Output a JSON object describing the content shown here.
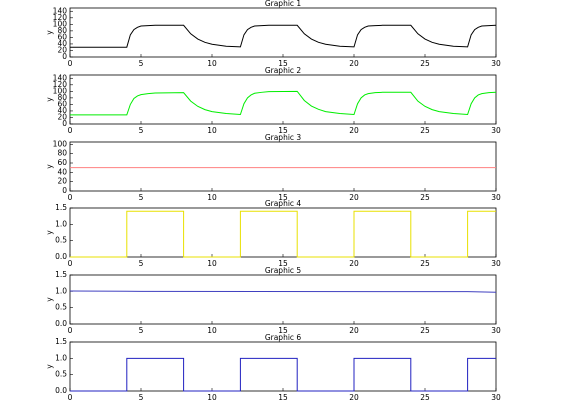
{
  "chart_data": [
    {
      "type": "line",
      "title": "Graphic 1",
      "ylabel": "y",
      "color": "#000000",
      "x": [
        0,
        4,
        4.25,
        4.5,
        4.75,
        5,
        5.5,
        6,
        8,
        8.5,
        9,
        9.5,
        10,
        11,
        12,
        12.25,
        12.5,
        12.75,
        13,
        13.5,
        14,
        16,
        16.5,
        17,
        17.5,
        18,
        19,
        20,
        20.25,
        20.5,
        20.75,
        21,
        21.5,
        22,
        24,
        24.5,
        25,
        25.5,
        26,
        27,
        28,
        28.25,
        28.5,
        28.75,
        29,
        29.5,
        30
      ],
      "values": [
        30,
        30,
        68,
        84,
        91,
        95,
        96,
        97,
        97,
        71,
        55,
        45,
        39,
        33,
        31,
        68,
        84,
        91,
        95,
        96,
        97,
        97,
        71,
        55,
        45,
        39,
        33,
        31,
        68,
        84,
        91,
        95,
        96,
        97,
        97,
        71,
        55,
        45,
        39,
        33,
        31,
        68,
        84,
        91,
        95,
        96,
        97
      ],
      "xlim": [
        0,
        30
      ],
      "xticks": [
        0,
        5,
        10,
        15,
        20,
        25,
        30
      ],
      "ylim": [
        0,
        150
      ],
      "yticks": [
        0,
        20,
        40,
        60,
        80,
        100,
        120,
        140
      ]
    },
    {
      "type": "line",
      "title": "Graphic 2",
      "ylabel": "y",
      "color": "#00ee00",
      "x": [
        0,
        4,
        4.25,
        4.5,
        4.75,
        5,
        5.5,
        6,
        8,
        8.5,
        9,
        9.5,
        10,
        11,
        12,
        12.25,
        12.5,
        12.75,
        13,
        13.5,
        14,
        16,
        16.5,
        17,
        17.5,
        18,
        19,
        20,
        20.25,
        20.5,
        20.75,
        21,
        21.5,
        22,
        24,
        24.5,
        25,
        25.5,
        26,
        27,
        28,
        28.25,
        28.5,
        28.75,
        29,
        29.5,
        30
      ],
      "values": [
        28,
        28,
        60,
        78,
        86,
        90,
        93,
        95,
        96,
        70,
        54,
        44,
        38,
        32,
        29,
        62,
        80,
        89,
        94,
        97,
        99,
        100,
        72,
        55,
        45,
        38,
        32,
        29,
        62,
        80,
        89,
        93,
        96,
        97,
        97,
        70,
        54,
        44,
        38,
        32,
        29,
        62,
        80,
        89,
        93,
        96,
        97
      ],
      "xlim": [
        0,
        30
      ],
      "xticks": [
        0,
        5,
        10,
        15,
        20,
        25,
        30
      ],
      "ylim": [
        0,
        150
      ],
      "yticks": [
        0,
        20,
        40,
        60,
        80,
        100,
        120,
        140
      ]
    },
    {
      "type": "line",
      "title": "Graphic 3",
      "ylabel": "y",
      "color": "#ff8080",
      "x": [
        0,
        30
      ],
      "values": [
        50,
        50
      ],
      "xlim": [
        0,
        30
      ],
      "xticks": [
        0,
        5,
        10,
        15,
        20,
        25,
        30
      ],
      "ylim": [
        0,
        105
      ],
      "yticks": [
        0,
        20,
        40,
        60,
        80,
        100
      ]
    },
    {
      "type": "line",
      "title": "Graphic 4",
      "ylabel": "y",
      "color": "#e8e000",
      "x": [
        0,
        4,
        4,
        8,
        8,
        12,
        12,
        16,
        16,
        20,
        20,
        24,
        24,
        28,
        28,
        30
      ],
      "values": [
        0,
        0,
        1.4,
        1.4,
        0,
        0,
        1.4,
        1.4,
        0,
        0,
        1.4,
        1.4,
        0,
        0,
        1.4,
        1.4
      ],
      "xlim": [
        0,
        30
      ],
      "xticks": [
        0,
        5,
        10,
        15,
        20,
        25,
        30
      ],
      "ylim": [
        0,
        1.5
      ],
      "yticks": [
        {
          "value": 0,
          "label": "0.0"
        },
        {
          "value": 0.5,
          "label": "0.5"
        },
        {
          "value": 1,
          "label": "1.0"
        },
        {
          "value": 1.5,
          "label": "1.5"
        }
      ]
    },
    {
      "type": "line",
      "title": "Graphic 5",
      "ylabel": "y",
      "color": "#4040c0",
      "x": [
        0,
        5,
        28,
        30
      ],
      "values": [
        1.01,
        1,
        0.99,
        0.97
      ],
      "xlim": [
        0,
        30
      ],
      "xticks": [
        0,
        5,
        10,
        15,
        20,
        25,
        30
      ],
      "ylim": [
        0,
        1.5
      ],
      "yticks": [
        {
          "value": 0,
          "label": "0.0"
        },
        {
          "value": 0.5,
          "label": "0.5"
        },
        {
          "value": 1,
          "label": "1.0"
        },
        {
          "value": 1.5,
          "label": "1.5"
        }
      ]
    },
    {
      "type": "line",
      "title": "Graphic 6",
      "ylabel": "y",
      "color": "#2020c0",
      "x": [
        0,
        4,
        4,
        8,
        8,
        12,
        12,
        16,
        16,
        20,
        20,
        24,
        24,
        28,
        28,
        30
      ],
      "values": [
        0,
        0,
        1,
        1,
        0,
        0,
        1,
        1,
        0,
        0,
        1,
        1,
        0,
        0,
        1,
        1
      ],
      "xlim": [
        0,
        30
      ],
      "xticks": [
        0,
        5,
        10,
        15,
        20,
        25,
        30
      ],
      "ylim": [
        0,
        1.5
      ],
      "yticks": [
        {
          "value": 0,
          "label": "0.0"
        },
        {
          "value": 0.5,
          "label": "0.5"
        },
        {
          "value": 1,
          "label": "1.0"
        },
        {
          "value": 1.5,
          "label": "1.5"
        }
      ]
    }
  ]
}
